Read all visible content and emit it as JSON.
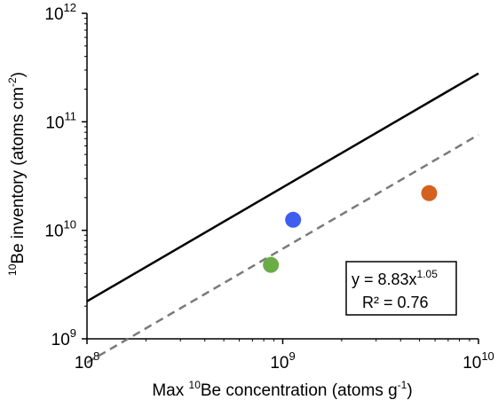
{
  "chart_data": {
    "type": "scatter",
    "xscale": "log",
    "yscale": "log",
    "xlim": [
      100000000,
      10000000000
    ],
    "ylim": [
      1000000000,
      1000000000000
    ],
    "x_ticks": [
      {
        "value": 100000000,
        "base": "10",
        "exp": "8"
      },
      {
        "value": 1000000000,
        "base": "10",
        "exp": "9"
      },
      {
        "value": 10000000000,
        "base": "10",
        "exp": "10"
      }
    ],
    "y_ticks": [
      {
        "value": 1000000000,
        "base": "10",
        "exp": "9"
      },
      {
        "value": 10000000000,
        "base": "10",
        "exp": "10"
      },
      {
        "value": 100000000000,
        "base": "10",
        "exp": "11"
      },
      {
        "value": 1000000000000,
        "base": "10",
        "exp": "12"
      }
    ],
    "xlabel": {
      "pre": "Max ",
      "sup": "10",
      "mid": "Be concentration (atoms g",
      "sup2": "-1",
      "post": ")"
    },
    "ylabel": {
      "sup": "10",
      "mid": "Be inventory (atoms cm",
      "sup2": "-2",
      "post": ")"
    },
    "points": [
      {
        "x": 870000000,
        "y": 4800000000,
        "color": "#6aad45"
      },
      {
        "x": 1130000000,
        "y": 12500000000,
        "color": "#3f5ef0"
      },
      {
        "x": 5600000000,
        "y": 22000000000,
        "color": "#d5611f"
      }
    ],
    "fit_line": {
      "coef": 8.83,
      "exp": 1.05,
      "color": "#000000",
      "style": "solid"
    },
    "reference_line": {
      "coef": 2.4,
      "exp": 1.05,
      "color": "#7a7a7a",
      "style": "dashed"
    },
    "equation": {
      "lhs": "y = 8.83x",
      "exp": "1.05",
      "r2": "R² = 0.76"
    },
    "grid": false
  }
}
